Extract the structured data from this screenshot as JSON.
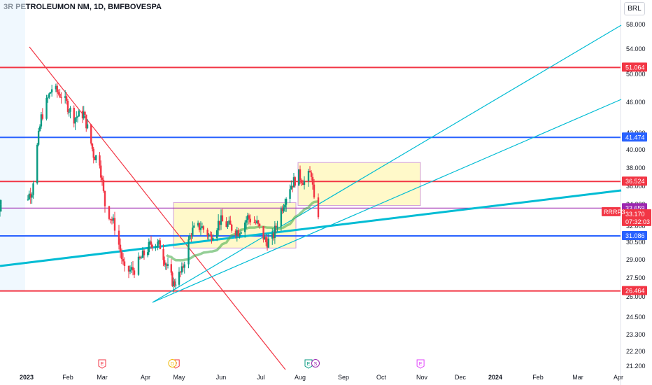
{
  "title": "3R PETROLEUMON NM, 1D, BMFBOVESPA",
  "currency": "BRL",
  "chart_data": {
    "type": "candlestick",
    "symbol_tag": "RRRP3",
    "last_price": "33.170",
    "countdown": "07:32:03",
    "ylim": [
      21.2,
      59.5
    ],
    "y_ticks": [
      "21.200",
      "22.200",
      "23.300",
      "24.500",
      "26.000",
      "27.500",
      "29.000",
      "30.500",
      "32.000",
      "34.000",
      "36.000",
      "38.000",
      "40.000",
      "42.000",
      "46.000",
      "50.000",
      "54.000",
      "58.000"
    ],
    "x_ticks": [
      {
        "label": "2023",
        "bold": true
      },
      {
        "label": "Feb"
      },
      {
        "label": "Mar"
      },
      {
        "label": "Apr"
      },
      {
        "label": "May"
      },
      {
        "label": "Jun"
      },
      {
        "label": "Jul"
      },
      {
        "label": "Aug"
      },
      {
        "label": "Sep"
      },
      {
        "label": "Oct"
      },
      {
        "label": "Nov"
      },
      {
        "label": "Dec"
      },
      {
        "label": "2024",
        "bold": true
      },
      {
        "label": "Feb"
      },
      {
        "label": "Mar"
      },
      {
        "label": "Apr"
      }
    ],
    "price_levels": [
      {
        "value": "51.064",
        "price": 51.064,
        "color": "#f23645"
      },
      {
        "value": "41.474",
        "price": 41.474,
        "color": "#2962ff"
      },
      {
        "value": "36.524",
        "price": 36.524,
        "color": "#f23645"
      },
      {
        "value": "33.659",
        "price": 33.659,
        "color": "#9c27b0"
      },
      {
        "value": "31.086",
        "price": 31.086,
        "color": "#2962ff"
      },
      {
        "value": "26.464",
        "price": 26.464,
        "color": "#f23645"
      }
    ],
    "earnings_markers": [
      {
        "label": "E",
        "date": "2023-03-01",
        "color": "#f23645"
      },
      {
        "label": "E",
        "date": "2023-04-28",
        "color": "#f23645"
      },
      {
        "label": "E",
        "date": "2023-08-07",
        "color": "#089981"
      },
      {
        "label": "E",
        "date": "2023-10-31",
        "color": "#e040fb"
      }
    ],
    "dividend_markers": [
      {
        "label": "D",
        "date": "2023-04-25",
        "color": "#f0b90b"
      }
    ],
    "split_markers": [
      {
        "label": "S",
        "date": "2023-08-12",
        "color": "#9c27b0"
      }
    ],
    "colors": {
      "up": "#089981",
      "down": "#f23645",
      "ma_black": "#000000",
      "ma_yellow": "#f5e50a",
      "ma_purple": "#7b1fa2",
      "ma_blue": "#2962ff",
      "ma_teal": "#26a69a",
      "channel": "#00bcd4",
      "downtrend": "#f23645"
    }
  }
}
